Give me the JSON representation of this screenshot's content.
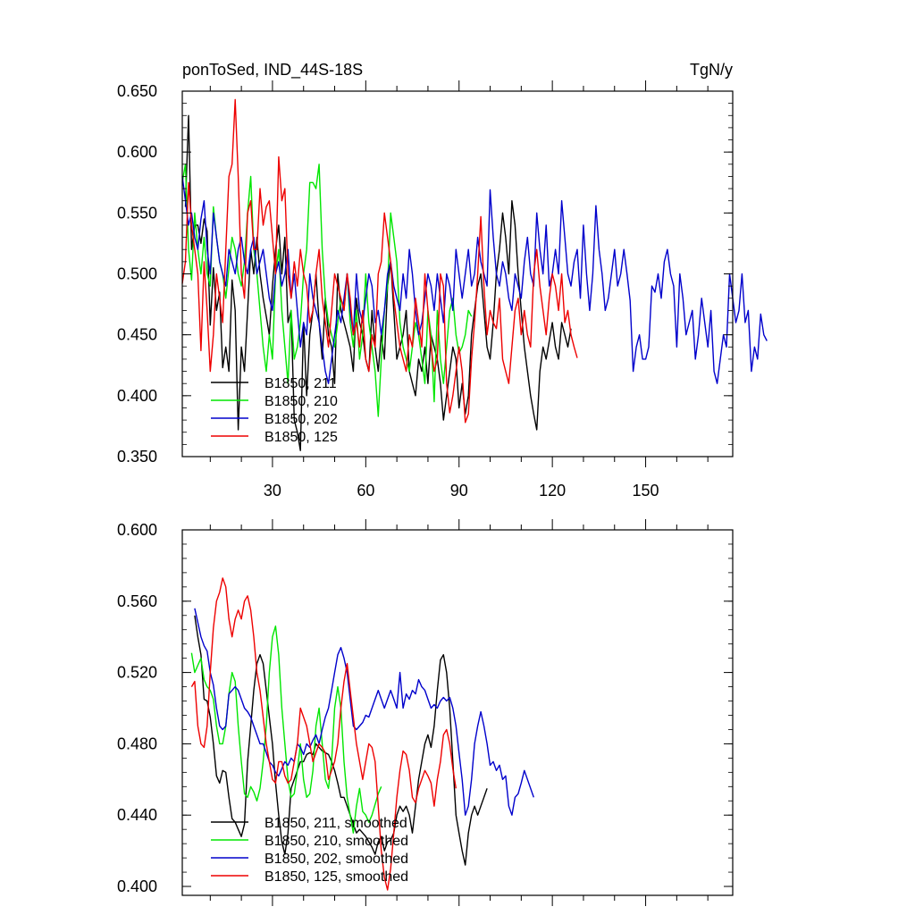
{
  "chart_data": [
    {
      "type": "line",
      "title": "ponToSed, IND_44S-18S",
      "units": "TgN/y",
      "xlim": [
        1,
        178
      ],
      "ylim": [
        0.35,
        0.65
      ],
      "ytick_labels": [
        "0.650",
        "0.600",
        "0.550",
        "0.500",
        "0.450",
        "0.400",
        "0.350"
      ],
      "xtick_labels": [
        "30",
        "60",
        "90",
        "120",
        "150"
      ],
      "legend_position": "bottom-left",
      "colors": {
        "B1850, 211": "#000000",
        "B1850, 210": "#00e600",
        "B1850, 202": "#0000cc",
        "B1850, 125": "#ee0000"
      },
      "series": [
        {
          "name": "B1850, 211",
          "color": "#000000",
          "x_start": 2,
          "values": [
            0.555,
            0.63,
            0.52,
            0.54,
            0.54,
            0.525,
            0.545,
            0.535,
            0.458,
            0.505,
            0.47,
            0.485,
            0.423,
            0.44,
            0.42,
            0.495,
            0.47,
            0.372,
            0.44,
            0.42,
            0.47,
            0.52,
            0.5,
            0.53,
            0.5,
            0.48,
            0.465,
            0.45,
            0.49,
            0.52,
            0.54,
            0.5,
            0.53,
            0.46,
            0.47,
            0.38,
            0.37,
            0.355,
            0.46,
            0.4,
            0.45,
            0.47,
            0.5,
            0.46,
            0.43,
            0.48,
            0.45,
            0.44,
            0.41,
            0.5,
            0.47,
            0.46,
            0.45,
            0.44,
            0.42,
            0.48,
            0.46,
            0.45,
            0.43,
            0.42,
            0.47,
            0.44,
            0.42,
            0.45,
            0.43,
            0.49,
            0.51,
            0.47,
            0.43,
            0.44,
            0.45,
            0.47,
            0.42,
            0.41,
            0.4,
            0.43,
            0.42,
            0.44,
            0.41,
            0.45,
            0.44,
            0.43,
            0.41,
            0.38,
            0.4,
            0.42,
            0.44,
            0.43,
            0.39,
            0.41,
            0.385,
            0.4,
            0.45,
            0.47,
            0.49,
            0.5,
            0.47,
            0.44,
            0.43,
            0.46,
            0.5,
            0.52,
            0.55,
            0.53,
            0.5,
            0.56,
            0.54,
            0.5,
            0.47,
            0.44,
            0.42,
            0.4,
            0.385,
            0.372,
            0.42,
            0.44,
            0.43,
            0.445,
            0.46,
            0.44,
            0.43,
            0.46,
            0.45,
            0.44,
            0.455
          ]
        },
        {
          "name": "B1850, 210",
          "color": "#00e600",
          "x_start": 1,
          "values": [
            0.575,
            0.59,
            0.52,
            0.495,
            0.55,
            0.52,
            0.5,
            0.53,
            0.5,
            0.49,
            0.555,
            0.53,
            0.51,
            0.5,
            0.48,
            0.505,
            0.53,
            0.52,
            0.5,
            0.49,
            0.51,
            0.55,
            0.58,
            0.52,
            0.5,
            0.47,
            0.44,
            0.42,
            0.45,
            0.43,
            0.5,
            0.52,
            0.47,
            0.44,
            0.41,
            0.47,
            0.43,
            0.44,
            0.46,
            0.5,
            0.52,
            0.575,
            0.575,
            0.57,
            0.59,
            0.52,
            0.48,
            0.46,
            0.45,
            0.44,
            0.46,
            0.48,
            0.47,
            0.5,
            0.46,
            0.44,
            0.47,
            0.43,
            0.45,
            0.5,
            0.46,
            0.44,
            0.42,
            0.383,
            0.43,
            0.47,
            0.49,
            0.55,
            0.53,
            0.51,
            0.46,
            0.44,
            0.43,
            0.42,
            0.44,
            0.46,
            0.45,
            0.43,
            0.41,
            0.47,
            0.45,
            0.395,
            0.47,
            0.43,
            0.41,
            0.44,
            0.47,
            0.48,
            0.45,
            0.435,
            0.44,
            0.45,
            0.47,
            0.465
          ]
        },
        {
          "name": "B1850, 202",
          "color": "#0000cc",
          "x_start": 1,
          "values": [
            0.58,
            0.56,
            0.54,
            0.55,
            0.53,
            0.52,
            0.545,
            0.56,
            0.52,
            0.5,
            0.55,
            0.53,
            0.51,
            0.5,
            0.49,
            0.52,
            0.51,
            0.5,
            0.52,
            0.53,
            0.51,
            0.5,
            0.52,
            0.53,
            0.5,
            0.51,
            0.52,
            0.5,
            0.48,
            0.47,
            0.5,
            0.51,
            0.49,
            0.5,
            0.52,
            0.48,
            0.5,
            0.47,
            0.44,
            0.46,
            0.45,
            0.5,
            0.48,
            0.47,
            0.46,
            0.44,
            0.42,
            0.41,
            0.43,
            0.45,
            0.47,
            0.46,
            0.48,
            0.5,
            0.47,
            0.45,
            0.5,
            0.47,
            0.46,
            0.48,
            0.5,
            0.49,
            0.46,
            0.47,
            0.45,
            0.47,
            0.5,
            0.51,
            0.49,
            0.48,
            0.47,
            0.5,
            0.48,
            0.52,
            0.5,
            0.47,
            0.45,
            0.46,
            0.48,
            0.5,
            0.49,
            0.47,
            0.5,
            0.48,
            0.46,
            0.5,
            0.49,
            0.47,
            0.52,
            0.5,
            0.48,
            0.5,
            0.52,
            0.49,
            0.5,
            0.53,
            0.51,
            0.5,
            0.49,
            0.569,
            0.53,
            0.5,
            0.49,
            0.51,
            0.5,
            0.48,
            0.47,
            0.5,
            0.49,
            0.48,
            0.51,
            0.53,
            0.5,
            0.49,
            0.55,
            0.52,
            0.5,
            0.54,
            0.49,
            0.5,
            0.52,
            0.5,
            0.56,
            0.53,
            0.5,
            0.49,
            0.51,
            0.52,
            0.48,
            0.54,
            0.5,
            0.47,
            0.5,
            0.556,
            0.52,
            0.5,
            0.47,
            0.48,
            0.5,
            0.52,
            0.49,
            0.5,
            0.52,
            0.5,
            0.478,
            0.42,
            0.44,
            0.45,
            0.43,
            0.43,
            0.44,
            0.49,
            0.485,
            0.5,
            0.48,
            0.51,
            0.52,
            0.5,
            0.49,
            0.44,
            0.5,
            0.48,
            0.45,
            0.46,
            0.47,
            0.43,
            0.45,
            0.48,
            0.46,
            0.44,
            0.47,
            0.42,
            0.41,
            0.43,
            0.45,
            0.44,
            0.5,
            0.48,
            0.46,
            0.47,
            0.5,
            0.46,
            0.47,
            0.42,
            0.44,
            0.43,
            0.467,
            0.45,
            0.445
          ]
        },
        {
          "name": "B1850, 125",
          "color": "#ee0000",
          "x_start": 1,
          "values": [
            0.492,
            0.51,
            0.575,
            0.54,
            0.52,
            0.5,
            0.437,
            0.51,
            0.47,
            0.42,
            0.45,
            0.5,
            0.48,
            0.46,
            0.52,
            0.58,
            0.59,
            0.643,
            0.58,
            0.5,
            0.48,
            0.55,
            0.56,
            0.52,
            0.52,
            0.57,
            0.54,
            0.555,
            0.56,
            0.53,
            0.5,
            0.596,
            0.56,
            0.57,
            0.5,
            0.48,
            0.51,
            0.49,
            0.52,
            0.5,
            0.49,
            0.46,
            0.47,
            0.5,
            0.52,
            0.48,
            0.46,
            0.44,
            0.47,
            0.5,
            0.49,
            0.48,
            0.47,
            0.5,
            0.48,
            0.45,
            0.46,
            0.44,
            0.47,
            0.43,
            0.42,
            0.45,
            0.44,
            0.5,
            0.51,
            0.55,
            0.53,
            0.51,
            0.48,
            0.46,
            0.44,
            0.43,
            0.42,
            0.45,
            0.44,
            0.48,
            0.46,
            0.44,
            0.5,
            0.47,
            0.44,
            0.42,
            0.43,
            0.5,
            0.49,
            0.41,
            0.386,
            0.4,
            0.42,
            0.44,
            0.42,
            0.378,
            0.385,
            0.43,
            0.46,
            0.5,
            0.547,
            0.49,
            0.45,
            0.47,
            0.46,
            0.455,
            0.48,
            0.43,
            0.42,
            0.41,
            0.44,
            0.47,
            0.48,
            0.45,
            0.47,
            0.45,
            0.44,
            0.5,
            0.52,
            0.49,
            0.47,
            0.45,
            0.48,
            0.5,
            0.49,
            0.47,
            0.5,
            0.46,
            0.47,
            0.45,
            0.44,
            0.431
          ]
        }
      ]
    },
    {
      "type": "line",
      "xlim": [
        1,
        178
      ],
      "ylim": [
        0.395,
        0.6
      ],
      "ytick_labels": [
        "0.600",
        "0.560",
        "0.520",
        "0.480",
        "0.440",
        "0.400"
      ],
      "legend_position": "bottom-left",
      "series": [
        {
          "name": "B1850, 211, smoothed",
          "color": "#000000",
          "x_start": 5,
          "values": [
            0.552,
            0.54,
            0.53,
            0.505,
            0.504,
            0.495,
            0.48,
            0.462,
            0.458,
            0.465,
            0.464,
            0.45,
            0.438,
            0.436,
            0.432,
            0.428,
            0.435,
            0.47,
            0.49,
            0.51,
            0.525,
            0.53,
            0.525,
            0.51,
            0.495,
            0.48,
            0.458,
            0.44,
            0.425,
            0.418,
            0.43,
            0.455,
            0.46,
            0.465,
            0.47,
            0.47,
            0.474,
            0.475,
            0.474,
            0.48,
            0.478,
            0.476,
            0.475,
            0.474,
            0.47,
            0.465,
            0.458,
            0.45,
            0.45,
            0.445,
            0.44,
            0.435,
            0.43,
            0.432,
            0.43,
            0.428,
            0.425,
            0.422,
            0.418,
            0.425,
            0.428,
            0.42,
            0.425,
            0.426,
            0.43,
            0.44,
            0.445,
            0.442,
            0.445,
            0.44,
            0.43,
            0.445,
            0.46,
            0.47,
            0.48,
            0.485,
            0.478,
            0.49,
            0.51,
            0.527,
            0.53,
            0.52,
            0.5,
            0.47,
            0.44,
            0.43,
            0.42,
            0.412,
            0.43,
            0.44,
            0.445,
            0.44,
            0.445,
            0.45,
            0.455
          ]
        },
        {
          "name": "B1850, 210, smoothed",
          "color": "#00e600",
          "x_start": 4,
          "values": [
            0.531,
            0.52,
            0.524,
            0.528,
            0.516,
            0.512,
            0.51,
            0.505,
            0.49,
            0.48,
            0.48,
            0.49,
            0.508,
            0.52,
            0.515,
            0.49,
            0.47,
            0.452,
            0.45,
            0.456,
            0.453,
            0.448,
            0.455,
            0.47,
            0.49,
            0.52,
            0.54,
            0.546,
            0.53,
            0.5,
            0.48,
            0.46,
            0.45,
            0.452,
            0.465,
            0.48,
            0.46,
            0.45,
            0.452,
            0.465,
            0.49,
            0.5,
            0.48,
            0.46,
            0.455,
            0.47,
            0.5,
            0.512,
            0.5,
            0.47,
            0.45,
            0.44,
            0.43,
            0.445,
            0.455,
            0.442,
            0.44,
            0.436,
            0.44,
            0.446,
            0.452,
            0.456
          ]
        },
        {
          "name": "B1850, 202, smoothed",
          "color": "#0000cc",
          "x_start": 5,
          "values": [
            0.556,
            0.548,
            0.54,
            0.535,
            0.532,
            0.52,
            0.513,
            0.5,
            0.49,
            0.488,
            0.49,
            0.508,
            0.51,
            0.512,
            0.51,
            0.505,
            0.5,
            0.498,
            0.495,
            0.49,
            0.485,
            0.48,
            0.48,
            0.475,
            0.47,
            0.468,
            0.464,
            0.462,
            0.466,
            0.47,
            0.468,
            0.472,
            0.47,
            0.48,
            0.478,
            0.474,
            0.48,
            0.478,
            0.482,
            0.485,
            0.48,
            0.488,
            0.495,
            0.5,
            0.51,
            0.52,
            0.53,
            0.534,
            0.528,
            0.52,
            0.505,
            0.49,
            0.488,
            0.49,
            0.492,
            0.496,
            0.495,
            0.5,
            0.505,
            0.51,
            0.505,
            0.5,
            0.505,
            0.51,
            0.505,
            0.5,
            0.52,
            0.5,
            0.508,
            0.505,
            0.51,
            0.508,
            0.516,
            0.512,
            0.51,
            0.505,
            0.5,
            0.502,
            0.5,
            0.504,
            0.506,
            0.504,
            0.506,
            0.5,
            0.49,
            0.475,
            0.46,
            0.44,
            0.445,
            0.46,
            0.48,
            0.49,
            0.498,
            0.49,
            0.48,
            0.468,
            0.47,
            0.465,
            0.468,
            0.46,
            0.462,
            0.445,
            0.44,
            0.45,
            0.452,
            0.458,
            0.465,
            0.46,
            0.455,
            0.45
          ]
        },
        {
          "name": "B1850, 125, smoothed",
          "color": "#ee0000",
          "x_start": 4,
          "values": [
            0.512,
            0.515,
            0.49,
            0.48,
            0.478,
            0.49,
            0.52,
            0.545,
            0.56,
            0.565,
            0.573,
            0.568,
            0.55,
            0.54,
            0.55,
            0.555,
            0.55,
            0.56,
            0.563,
            0.555,
            0.54,
            0.52,
            0.51,
            0.495,
            0.48,
            0.47,
            0.46,
            0.458,
            0.47,
            0.47,
            0.462,
            0.458,
            0.46,
            0.47,
            0.48,
            0.5,
            0.495,
            0.49,
            0.48,
            0.47,
            0.475,
            0.48,
            0.478,
            0.475,
            0.46,
            0.465,
            0.47,
            0.48,
            0.5,
            0.515,
            0.525,
            0.51,
            0.495,
            0.48,
            0.47,
            0.46,
            0.47,
            0.48,
            0.478,
            0.47,
            0.445,
            0.42,
            0.405,
            0.398,
            0.41,
            0.43,
            0.45,
            0.465,
            0.476,
            0.474,
            0.465,
            0.45,
            0.447,
            0.455,
            0.46,
            0.465,
            0.462,
            0.458,
            0.445,
            0.46,
            0.47,
            0.485,
            0.488,
            0.48,
            0.466,
            0.455
          ]
        }
      ]
    }
  ]
}
